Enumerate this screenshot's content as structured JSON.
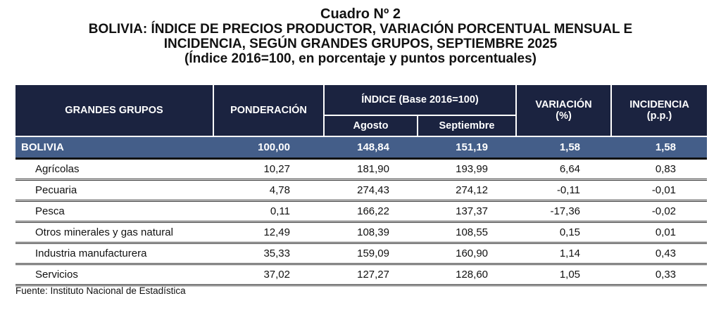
{
  "title": {
    "number": "Cuadro Nº 2",
    "line1": "BOLIVIA: ÍNDICE DE PRECIOS PRODUCTOR, VARIACIÓN PORCENTUAL MENSUAL E",
    "line2": "INCIDENCIA, SEGÚN GRANDES GRUPOS, SEPTIEMBRE 2025",
    "line3": "(Índice 2016=100, en porcentaje y puntos porcentuales)"
  },
  "headers": {
    "grupos": "GRANDES GRUPOS",
    "ponderacion": "PONDERACIÓN",
    "indice": "ÍNDICE (Base 2016=100)",
    "agosto": "Agosto",
    "septiembre": "Septiembre",
    "variacion": "VARIACIÓN",
    "variacion_unit": "(%)",
    "incidencia": "INCIDENCIA",
    "incidencia_unit": "(p.p.)"
  },
  "total": {
    "name": "BOLIVIA",
    "pond": "100,00",
    "ago": "148,84",
    "sep": "151,19",
    "var": "1,58",
    "inc": "1,58"
  },
  "rows": [
    {
      "name": "Agrícolas",
      "pond": "10,27",
      "ago": "181,90",
      "sep": "193,99",
      "var": "6,64",
      "inc": "0,83"
    },
    {
      "name": "Pecuaria",
      "pond": "4,78",
      "ago": "274,43",
      "sep": "274,12",
      "var": "-0,11",
      "inc": "-0,01"
    },
    {
      "name": "Pesca",
      "pond": "0,11",
      "ago": "166,22",
      "sep": "137,37",
      "var": "-17,36",
      "inc": "-0,02"
    },
    {
      "name": "Otros minerales y gas natural",
      "pond": "12,49",
      "ago": "108,39",
      "sep": "108,55",
      "var": "0,15",
      "inc": "0,01"
    },
    {
      "name": "Industria manufacturera",
      "pond": "35,33",
      "ago": "159,09",
      "sep": "160,90",
      "var": "1,14",
      "inc": "0,43"
    },
    {
      "name": "Servicios",
      "pond": "37,02",
      "ago": "127,27",
      "sep": "128,60",
      "var": "1,05",
      "inc": "0,33"
    }
  ],
  "source": "Fuente: Instituto Nacional de Estadística",
  "colors": {
    "header": "#1b2340",
    "total_row": "#445e89"
  }
}
